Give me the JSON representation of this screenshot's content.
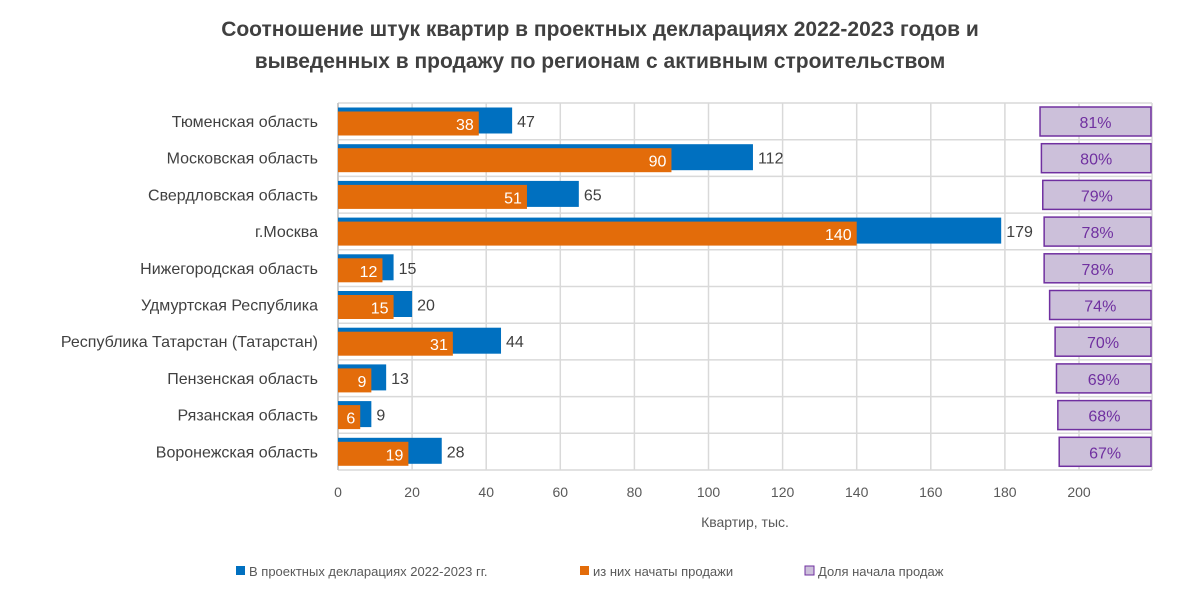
{
  "chart_data": {
    "type": "bar",
    "orientation": "horizontal",
    "title_line1": "Соотношение штук квартир в проектных декларациях 2022-2023 годов и",
    "title_line2": "выведенных в продажу по регионам с активным строительством",
    "xlabel": "Квартир, тыс.",
    "xlim": [
      0,
      200
    ],
    "xticks": [
      "0",
      "20",
      "40",
      "60",
      "80",
      "100",
      "120",
      "140",
      "160",
      "180",
      "200"
    ],
    "grid": true,
    "legend_position": "bottom",
    "categories": [
      "Тюменская область",
      "Московская область",
      "Свердловская область",
      "г.Москва",
      "Нижегородская область",
      "Удмуртская Республика",
      "Республика Татарстан (Татарстан)",
      "Пензенская область",
      "Рязанская область",
      "Воронежская область"
    ],
    "series": [
      {
        "name": "В проектных декларациях 2022-2023 гг.",
        "color": "#0070C0",
        "values": [
          47,
          112,
          65,
          179,
          15,
          20,
          44,
          13,
          9,
          28
        ]
      },
      {
        "name": "из них начаты продажи",
        "color": "#E36C0A",
        "values": [
          38,
          90,
          51,
          140,
          12,
          15,
          31,
          9,
          6,
          19
        ]
      },
      {
        "name": "Доля начала продаж",
        "color": "#CCC0DA",
        "border": "#7030A0",
        "values": [
          81,
          80,
          79,
          78,
          78,
          74,
          70,
          69,
          68,
          67
        ],
        "labels": [
          "81%",
          "80%",
          "79%",
          "78%",
          "78%",
          "74%",
          "70%",
          "69%",
          "68%",
          "67%"
        ]
      }
    ]
  }
}
